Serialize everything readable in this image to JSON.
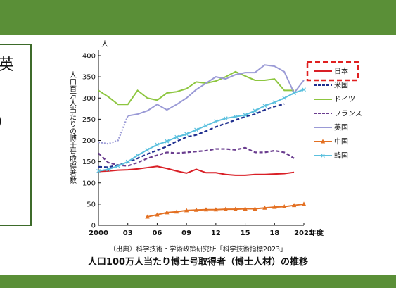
{
  "panel": {
    "char_top": "英",
    "char_mid": ")"
  },
  "chart_data": {
    "type": "line",
    "title": "",
    "y_unit": "人",
    "x_unit": "年度",
    "ylabel": "人口百万人当たりの博士号取得者数",
    "xlabel": "",
    "ylim": [
      0,
      400
    ],
    "xlim": [
      2000,
      2021
    ],
    "yticks": [
      0,
      50,
      100,
      150,
      200,
      250,
      300,
      350,
      400
    ],
    "xtick_values": [
      2000,
      2003,
      2006,
      2009,
      2012,
      2015,
      2018,
      2021
    ],
    "xtick_labels": [
      "2000",
      "03",
      "06",
      "09",
      "12",
      "15",
      "18",
      "2021"
    ],
    "legend_position": "right",
    "grid": false,
    "series": [
      {
        "name": "日本",
        "color": "#d91f26",
        "style": "solid",
        "marker": "none",
        "highlight": true,
        "x": [
          2000,
          2001,
          2002,
          2003,
          2004,
          2005,
          2006,
          2007,
          2008,
          2009,
          2010,
          2011,
          2012,
          2013,
          2014,
          2015,
          2016,
          2017,
          2018,
          2019,
          2020
        ],
        "y": [
          127,
          128,
          130,
          131,
          133,
          136,
          139,
          134,
          128,
          123,
          132,
          124,
          124,
          120,
          118,
          118,
          120,
          120,
          121,
          122,
          125
        ]
      },
      {
        "name": "米国",
        "color": "#1f2f8f",
        "style": "dashed",
        "marker": "none",
        "x": [
          2000,
          2001,
          2002,
          2003,
          2004,
          2005,
          2006,
          2007,
          2008,
          2009,
          2010,
          2011,
          2012,
          2013,
          2014,
          2015,
          2016,
          2017,
          2018,
          2019
        ],
        "y": [
          138,
          137,
          142,
          148,
          158,
          168,
          177,
          186,
          198,
          208,
          213,
          222,
          232,
          240,
          248,
          256,
          262,
          272,
          280,
          286
        ]
      },
      {
        "name": "ドイツ",
        "color": "#8dc63f",
        "style": "solid",
        "marker": "none",
        "x": [
          2000,
          2001,
          2002,
          2003,
          2004,
          2005,
          2006,
          2007,
          2008,
          2009,
          2010,
          2011,
          2012,
          2013,
          2014,
          2015,
          2016,
          2017,
          2018,
          2019,
          2020
        ],
        "y": [
          318,
          303,
          285,
          285,
          318,
          300,
          295,
          312,
          315,
          322,
          338,
          335,
          340,
          350,
          362,
          352,
          342,
          342,
          345,
          318,
          318
        ]
      },
      {
        "name": "フランス",
        "color": "#6a3d8f",
        "style": "dashed",
        "marker": "none",
        "x": [
          2000,
          2001,
          2002,
          2003,
          2004,
          2005,
          2006,
          2007,
          2008,
          2009,
          2010,
          2011,
          2012,
          2013,
          2014,
          2015,
          2016,
          2017,
          2018,
          2019,
          2020
        ],
        "y": [
          170,
          148,
          142,
          140,
          148,
          158,
          165,
          172,
          170,
          172,
          174,
          176,
          180,
          180,
          178,
          183,
          172,
          172,
          176,
          172,
          158
        ]
      },
      {
        "name": "英国",
        "color": "#9a9ad6",
        "style": "mixed",
        "marker": "none",
        "x": [
          2000,
          2001,
          2002,
          2003,
          2004,
          2005,
          2006,
          2007,
          2008,
          2009,
          2010,
          2011,
          2012,
          2013,
          2014,
          2015,
          2016,
          2017,
          2018,
          2019,
          2020,
          2021
        ],
        "y": [
          196,
          192,
          200,
          258,
          262,
          270,
          285,
          272,
          285,
          300,
          320,
          335,
          350,
          345,
          355,
          360,
          360,
          378,
          375,
          362,
          312,
          342
        ]
      },
      {
        "name": "中国",
        "color": "#e37022",
        "style": "solid",
        "marker": "triangle",
        "x": [
          2005,
          2006,
          2007,
          2008,
          2009,
          2010,
          2011,
          2012,
          2013,
          2014,
          2015,
          2016,
          2017,
          2018,
          2019,
          2020,
          2021
        ],
        "y": [
          20,
          25,
          30,
          32,
          35,
          36,
          37,
          37,
          38,
          38,
          39,
          39,
          41,
          43,
          44,
          47,
          50
        ]
      },
      {
        "name": "韓国",
        "color": "#5bc0de",
        "style": "solid",
        "marker": "x",
        "x": [
          2000,
          2001,
          2002,
          2003,
          2004,
          2005,
          2006,
          2007,
          2008,
          2009,
          2010,
          2011,
          2012,
          2013,
          2014,
          2015,
          2016,
          2017,
          2018,
          2019,
          2020,
          2021
        ],
        "y": [
          128,
          132,
          140,
          150,
          165,
          178,
          190,
          198,
          208,
          215,
          225,
          235,
          245,
          252,
          256,
          260,
          270,
          282,
          290,
          300,
          312,
          320
        ]
      }
    ]
  },
  "source_text": "（出典）科学技術・学術政策研究所「科学技術指標2023」",
  "caption": "人口100万人当たり博士号取得者（博士人材）の推移"
}
